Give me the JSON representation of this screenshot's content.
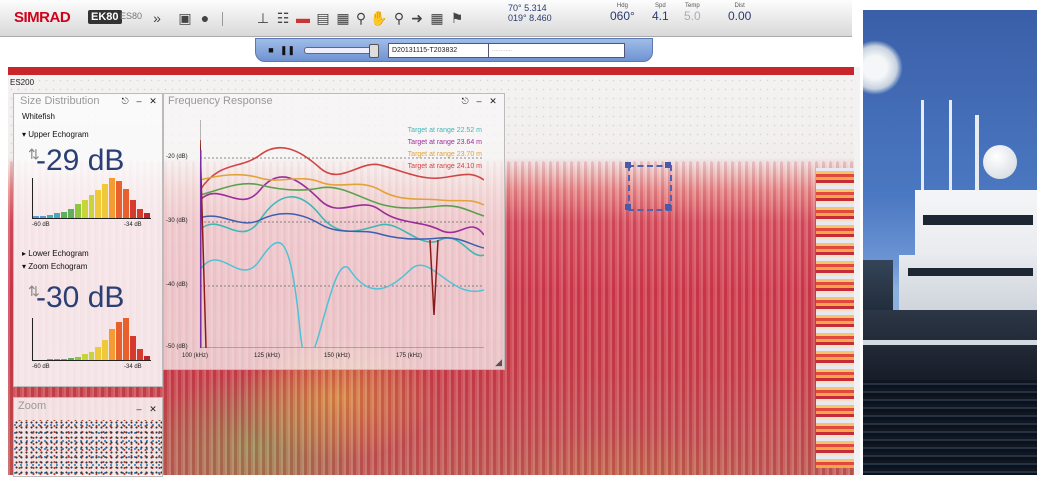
{
  "toolbar": {
    "brand": "SIMRAD",
    "brand_product": "EK80",
    "brand_sub": "ES80",
    "icons": [
      "chevron-double-down-icon",
      "camera-icon",
      "record-icon",
      "tool-icon",
      "layers-icon",
      "ruler-icon",
      "histogram-icon",
      "grid-icon",
      "zoom-in-icon",
      "pan-icon",
      "zoom-out-icon",
      "pointer-icon",
      "table-icon",
      "flag-icon"
    ],
    "position_lat": "70° 5.314",
    "position_lon": "019° 8.460",
    "hdg_label": "Hdg",
    "heading": "060°",
    "spd_label": "Spd",
    "speed": "4.1",
    "temp_label": "Temp",
    "temperature": "5.0",
    "dist_label": "Dist",
    "distance": "0.00"
  },
  "playback": {
    "file": "D20131115-T203832",
    "ping": "............"
  },
  "echogram": {
    "title": "ES200"
  },
  "size_distribution": {
    "title": "Size Distribution",
    "species": "Whitefish",
    "upper_label": "Upper Echogram",
    "upper_value": "-29 dB",
    "upper_min": "-60 dB",
    "upper_max": "-34 dB",
    "lower_label": "Lower Echogram",
    "zoom_label": "Zoom Echogram",
    "zoom_value": "-30 dB",
    "zoom_min": "-60 dB",
    "zoom_max": "-34 dB",
    "upper_bins": [
      1,
      1,
      2,
      3,
      4,
      6,
      9,
      12,
      15,
      18,
      22,
      26,
      24,
      19,
      12,
      6,
      3
    ],
    "zoom_bins": [
      0,
      0,
      1,
      1,
      1,
      2,
      3,
      5,
      7,
      12,
      18,
      28,
      34,
      38,
      22,
      10,
      4
    ]
  },
  "frequency_response": {
    "title": "Frequency Response",
    "legend": [
      "Target at range 22.52 m",
      "Target at range 23.64 m",
      "Target at range 23.70 m",
      "Target at range 24.10 m"
    ],
    "legend_colors": [
      "#3fb7b5",
      "#9b2d9b",
      "#e0a336",
      "#d24545"
    ],
    "y_ticks": [
      "-20 (dB)",
      "-30 (dB)",
      "-40 (dB)",
      "-50 (dB)"
    ],
    "x_ticks": [
      "100 (kHz)",
      "125 (kHz)",
      "150 (kHz)",
      "175 (kHz)"
    ]
  },
  "zoom_panel": {
    "title": "Zoom"
  },
  "colors": {
    "brand": "#d0021b",
    "accent": "#2a3f73",
    "echogram_red": "#c9262c"
  }
}
